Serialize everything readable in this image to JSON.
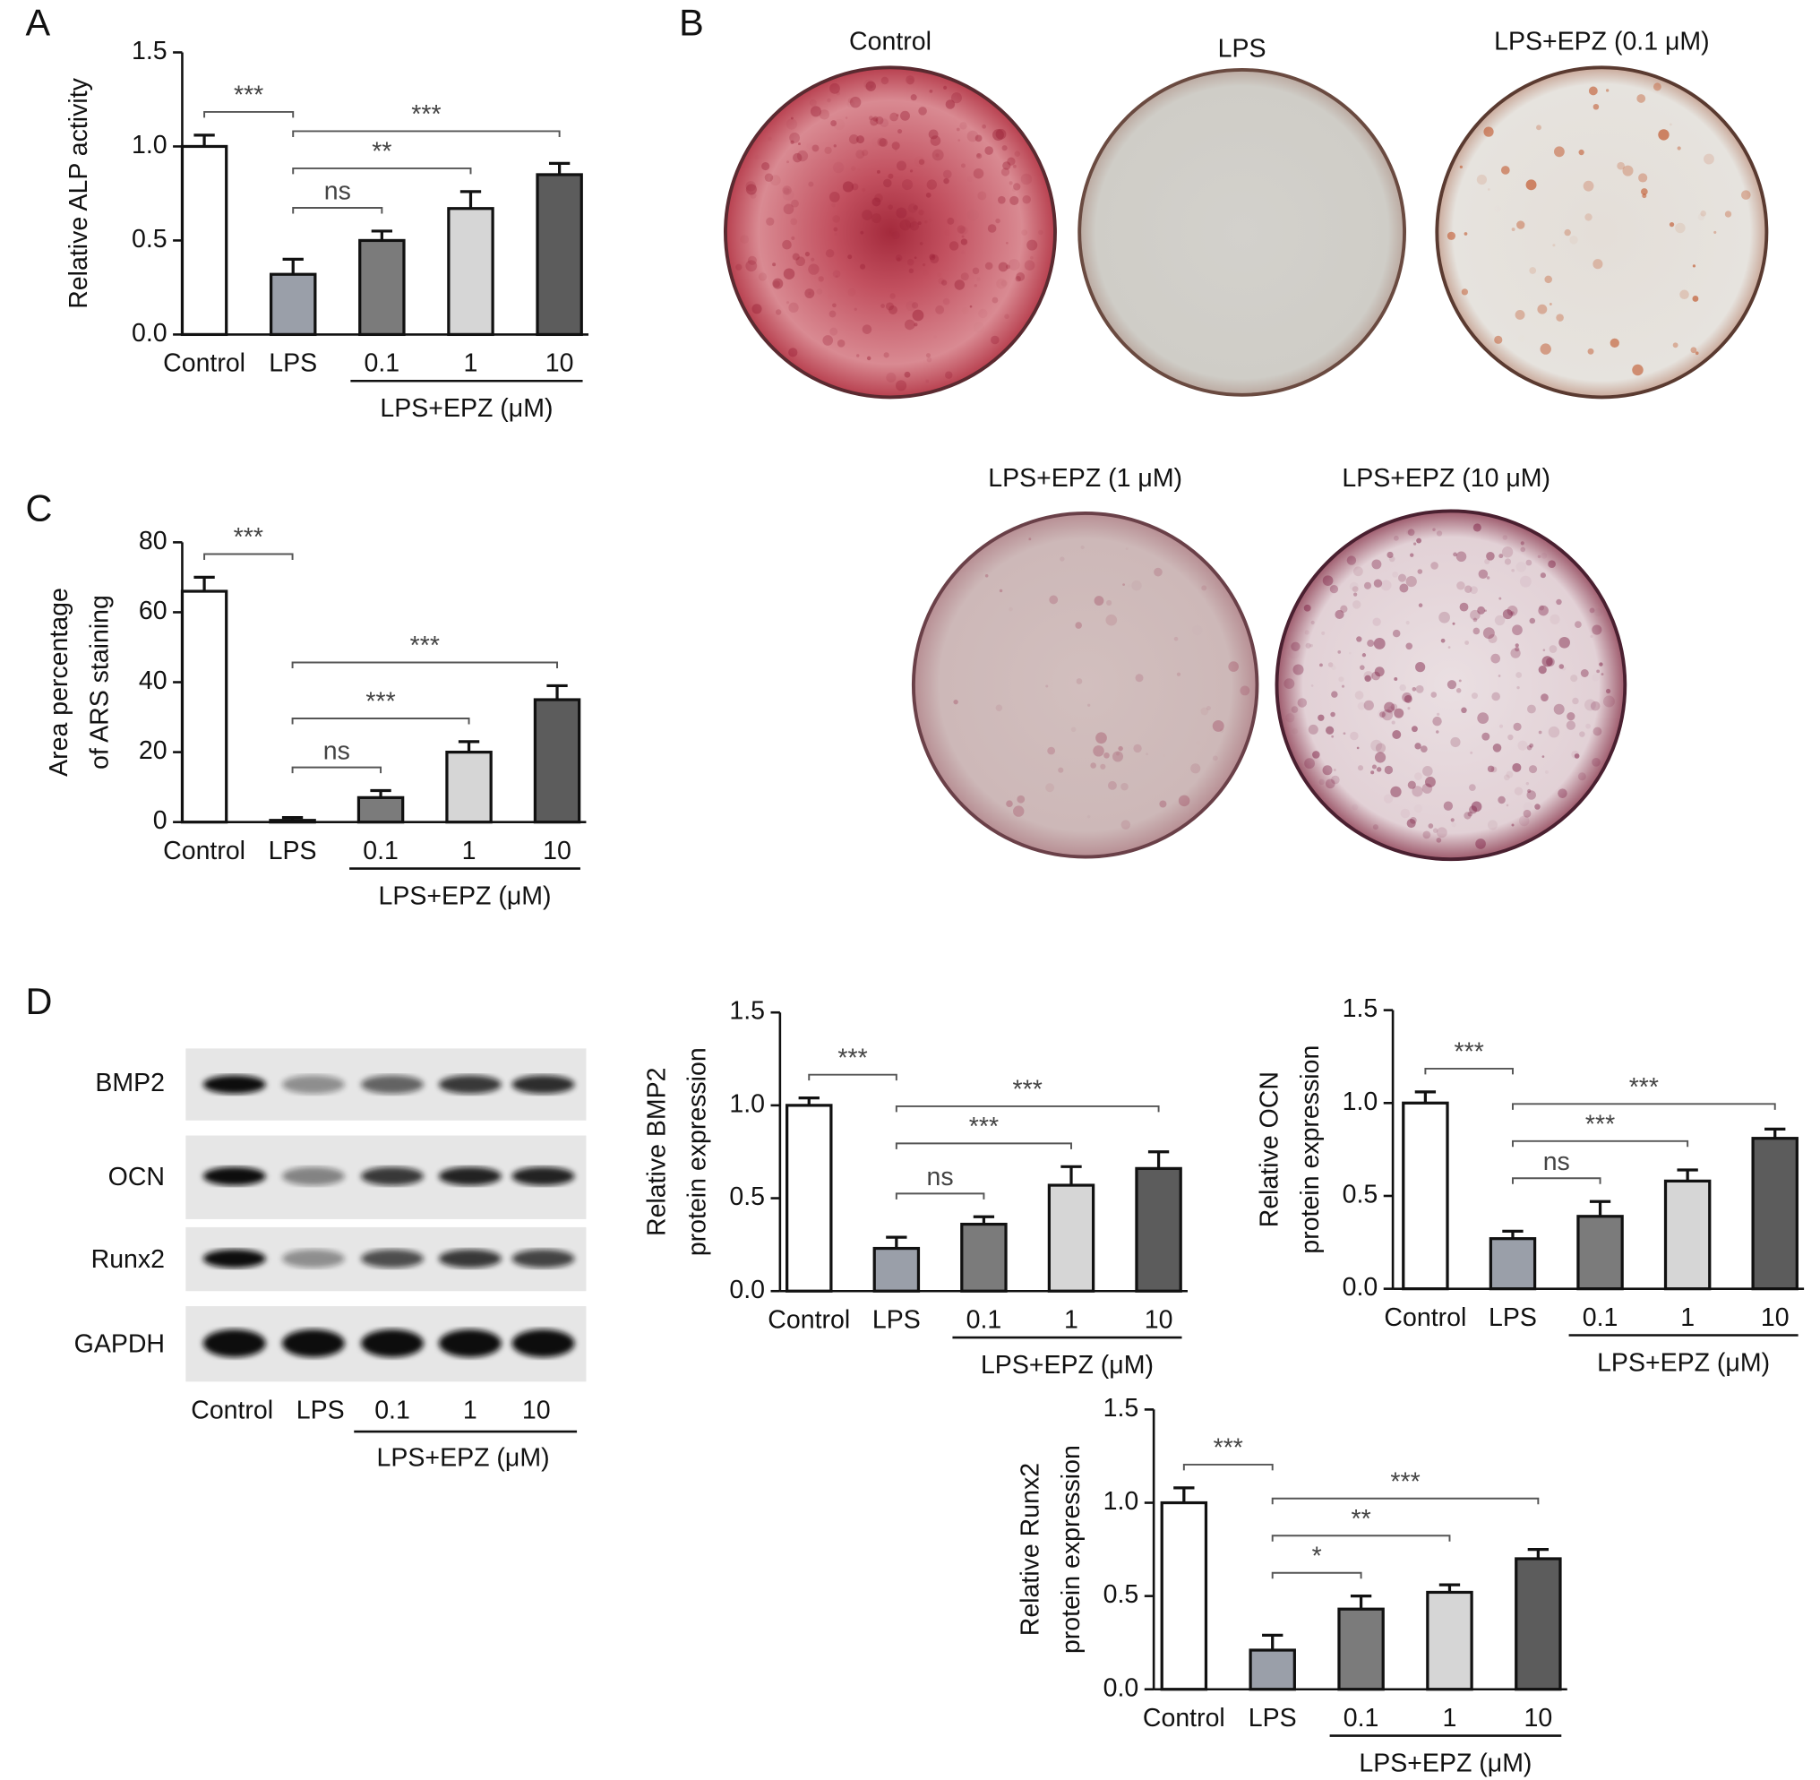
{
  "panels": [
    "A",
    "B",
    "C",
    "D"
  ],
  "photos": {
    "titles": [
      "Control",
      "LPS",
      "LPS+EPZ (0.1 μM)",
      "LPS+EPZ (1 μM)",
      "LPS+EPZ (10 μM)"
    ]
  },
  "western_blot": {
    "rows": [
      "BMP2",
      "OCN",
      "Runx2",
      "GAPDH"
    ],
    "lanes": [
      "Control",
      "LPS",
      "0.1",
      "1",
      "10"
    ],
    "group_label": "LPS+EPZ (μM)"
  },
  "chart_data": [
    {
      "type": "bar",
      "ylabel": [
        "Relative ALP activity"
      ],
      "categories": [
        "Control",
        "LPS",
        "0.1",
        "1",
        "10"
      ],
      "group_label": "LPS+EPZ (μM)",
      "values": [
        1.0,
        0.32,
        0.5,
        0.67,
        0.85
      ],
      "errors": [
        0.06,
        0.08,
        0.05,
        0.09,
        0.06
      ],
      "colors": [
        "#ffffff",
        "#9a9fa9",
        "#7b7b7b",
        "#d6d6d6",
        "#5c5c5c"
      ],
      "ylim": [
        0,
        1.5
      ],
      "yticks": [
        {
          "value": 0,
          "label": "0.0"
        },
        {
          "value": 0.5,
          "label": "0.5"
        },
        {
          "value": 1,
          "label": "1.0"
        },
        {
          "value": 1.5,
          "label": "1.5"
        }
      ],
      "significance": [
        {
          "between": [
            0,
            1
          ],
          "label": "***"
        },
        {
          "between": [
            1,
            2
          ],
          "label": "ns"
        },
        {
          "between": [
            1,
            3
          ],
          "label": "**"
        },
        {
          "between": [
            1,
            4
          ],
          "label": "***"
        }
      ]
    },
    {
      "type": "bar",
      "ylabel": [
        "Area percentage",
        "of ARS staining"
      ],
      "categories": [
        "Control",
        "LPS",
        "0.1",
        "1",
        "10"
      ],
      "group_label": "LPS+EPZ (μM)",
      "values": [
        66,
        0.5,
        7,
        20,
        35
      ],
      "errors": [
        4,
        0.8,
        2,
        3,
        4
      ],
      "colors": [
        "#ffffff",
        "#9a9fa9",
        "#7b7b7b",
        "#d6d6d6",
        "#5c5c5c"
      ],
      "ylim": [
        0,
        80
      ],
      "yticks": [
        0,
        20,
        40,
        60,
        80
      ],
      "significance": [
        {
          "between": [
            0,
            1
          ],
          "label": "***"
        },
        {
          "between": [
            1,
            2
          ],
          "label": "ns"
        },
        {
          "between": [
            1,
            3
          ],
          "label": "***"
        },
        {
          "between": [
            1,
            4
          ],
          "label": "***"
        }
      ]
    },
    {
      "type": "bar",
      "ylabel": [
        "Relative BMP2",
        "protein expression"
      ],
      "categories": [
        "Control",
        "LPS",
        "0.1",
        "1",
        "10"
      ],
      "group_label": "LPS+EPZ (μM)",
      "values": [
        1.0,
        0.23,
        0.36,
        0.57,
        0.66
      ],
      "errors": [
        0.04,
        0.06,
        0.04,
        0.1,
        0.09
      ],
      "colors": [
        "#ffffff",
        "#9a9fa9",
        "#7b7b7b",
        "#d6d6d6",
        "#5c5c5c"
      ],
      "ylim": [
        0,
        1.5
      ],
      "yticks": [
        {
          "value": 0,
          "label": "0.0"
        },
        {
          "value": 0.5,
          "label": "0.5"
        },
        {
          "value": 1,
          "label": "1.0"
        },
        {
          "value": 1.5,
          "label": "1.5"
        }
      ],
      "significance": [
        {
          "between": [
            0,
            1
          ],
          "label": "***"
        },
        {
          "between": [
            1,
            2
          ],
          "label": "ns"
        },
        {
          "between": [
            1,
            3
          ],
          "label": "***"
        },
        {
          "between": [
            1,
            4
          ],
          "label": "***"
        }
      ]
    },
    {
      "type": "bar",
      "ylabel": [
        "Relative OCN",
        "protein expression"
      ],
      "categories": [
        "Control",
        "LPS",
        "0.1",
        "1",
        "10"
      ],
      "group_label": "LPS+EPZ (μM)",
      "values": [
        1.0,
        0.27,
        0.39,
        0.58,
        0.81
      ],
      "errors": [
        0.06,
        0.04,
        0.08,
        0.06,
        0.05
      ],
      "colors": [
        "#ffffff",
        "#9a9fa9",
        "#7b7b7b",
        "#d6d6d6",
        "#5c5c5c"
      ],
      "ylim": [
        0,
        1.5
      ],
      "yticks": [
        {
          "value": 0,
          "label": "0.0"
        },
        {
          "value": 0.5,
          "label": "0.5"
        },
        {
          "value": 1,
          "label": "1.0"
        },
        {
          "value": 1.5,
          "label": "1.5"
        }
      ],
      "significance": [
        {
          "between": [
            0,
            1
          ],
          "label": "***"
        },
        {
          "between": [
            1,
            2
          ],
          "label": "ns"
        },
        {
          "between": [
            1,
            3
          ],
          "label": "***"
        },
        {
          "between": [
            1,
            4
          ],
          "label": "***"
        }
      ]
    },
    {
      "type": "bar",
      "ylabel": [
        "Relative Runx2",
        "protein expression"
      ],
      "categories": [
        "Control",
        "LPS",
        "0.1",
        "1",
        "10"
      ],
      "group_label": "LPS+EPZ (μM)",
      "values": [
        1.0,
        0.21,
        0.43,
        0.52,
        0.7
      ],
      "errors": [
        0.08,
        0.08,
        0.07,
        0.04,
        0.05
      ],
      "colors": [
        "#ffffff",
        "#9a9fa9",
        "#7b7b7b",
        "#d6d6d6",
        "#5c5c5c"
      ],
      "ylim": [
        0,
        1.5
      ],
      "yticks": [
        {
          "value": 0,
          "label": "0.0"
        },
        {
          "value": 0.5,
          "label": "0.5"
        },
        {
          "value": 1,
          "label": "1.0"
        },
        {
          "value": 1.5,
          "label": "1.5"
        }
      ],
      "significance": [
        {
          "between": [
            0,
            1
          ],
          "label": "***"
        },
        {
          "between": [
            1,
            2
          ],
          "label": "*"
        },
        {
          "between": [
            1,
            3
          ],
          "label": "**"
        },
        {
          "between": [
            1,
            4
          ],
          "label": "***"
        }
      ]
    }
  ]
}
